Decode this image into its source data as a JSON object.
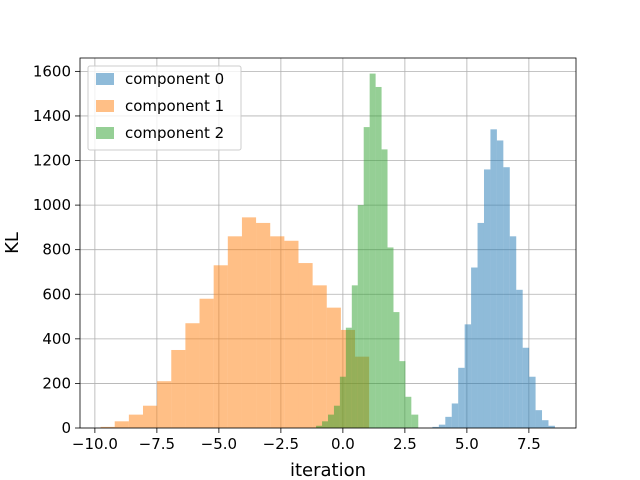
{
  "chart_data": {
    "type": "histogram",
    "title": "",
    "xlabel": "iteration",
    "ylabel": "KL",
    "xlim": [
      -10.6,
      9.4
    ],
    "ylim": [
      0,
      1660
    ],
    "grid": true,
    "legend_position": "top-left",
    "x_ticks": [
      -10.0,
      -7.5,
      -5.0,
      -2.5,
      0.0,
      2.5,
      5.0,
      7.5
    ],
    "x_tick_labels": [
      "−10.0",
      "−7.5",
      "−5.0",
      "−2.5",
      "0.0",
      "2.5",
      "5.0",
      "7.5"
    ],
    "y_ticks": [
      0,
      200,
      400,
      600,
      800,
      1000,
      1200,
      1400,
      1600
    ],
    "y_tick_labels": [
      "0",
      "200",
      "400",
      "600",
      "800",
      "1000",
      "1200",
      "1400",
      "1600"
    ],
    "series": [
      {
        "name": "component 0",
        "color": "#1f77b4",
        "alpha": 0.5,
        "bin_edges": [
          3.61,
          3.87,
          4.13,
          4.39,
          4.65,
          4.91,
          5.17,
          5.43,
          5.69,
          5.95,
          6.21,
          6.47,
          6.73,
          6.99,
          7.25,
          7.51,
          7.77,
          8.03,
          8.29,
          8.55
        ],
        "counts": [
          5,
          15,
          50,
          110,
          270,
          465,
          720,
          920,
          1160,
          1340,
          1290,
          1170,
          860,
          620,
          360,
          230,
          80,
          35,
          10
        ]
      },
      {
        "name": "component 1",
        "color": "#ff7f0e",
        "alpha": 0.5,
        "bin_edges": [
          -9.77,
          -9.2,
          -8.63,
          -8.06,
          -7.49,
          -6.92,
          -6.35,
          -5.78,
          -5.21,
          -4.64,
          -4.07,
          -3.5,
          -2.93,
          -2.36,
          -1.79,
          -1.22,
          -0.65,
          -0.08,
          0.49,
          1.06
        ],
        "counts": [
          5,
          30,
          60,
          100,
          210,
          350,
          470,
          580,
          730,
          860,
          945,
          920,
          860,
          840,
          740,
          640,
          540,
          440,
          320
        ]
      },
      {
        "name": "component 2",
        "color": "#2ca02c",
        "alpha": 0.5,
        "bin_edges": [
          -1.08,
          -0.84,
          -0.6,
          -0.36,
          -0.12,
          0.12,
          0.36,
          0.6,
          0.84,
          1.08,
          1.32,
          1.56,
          1.8,
          2.04,
          2.28,
          2.52,
          2.76,
          3.04
        ],
        "counts": [
          10,
          30,
          60,
          100,
          230,
          450,
          640,
          1000,
          1350,
          1590,
          1530,
          1250,
          810,
          520,
          300,
          140,
          60
        ]
      }
    ]
  }
}
